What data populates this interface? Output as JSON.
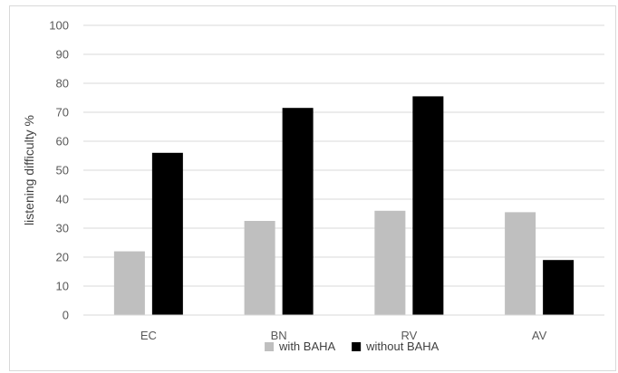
{
  "chart_data": {
    "type": "bar",
    "title": "",
    "xlabel": "",
    "ylabel": "listening difficulty %",
    "categories": [
      "EC",
      "BN",
      "RV",
      "AV"
    ],
    "series": [
      {
        "name": "with BAHA",
        "values": [
          22,
          32.5,
          36,
          35.5
        ],
        "color": "#bfbfbf"
      },
      {
        "name": "without BAHA",
        "values": [
          56,
          71.5,
          75.5,
          19
        ],
        "color": "#000000"
      }
    ],
    "ylim": [
      0,
      100
    ],
    "yticks": [
      0,
      10,
      20,
      30,
      40,
      50,
      60,
      70,
      80,
      90,
      100
    ],
    "grid": true,
    "legend_position": "bottom"
  }
}
